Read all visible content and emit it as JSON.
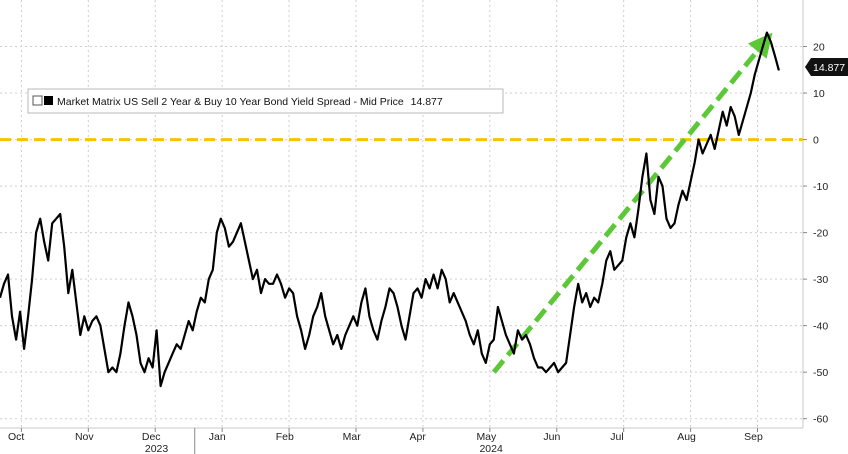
{
  "chart_data": {
    "type": "line",
    "legend": {
      "label": "Market Matrix US Sell 2 Year & Buy 10 Year Bond Yield Spread - Mid Price",
      "last_value": "14.877"
    },
    "last_value_tag": "14.877",
    "y_ticks": [
      20,
      10,
      0,
      -10,
      -20,
      -30,
      -40,
      -50,
      -60
    ],
    "ylim": [
      -62,
      30
    ],
    "x_months": [
      "Oct",
      "Nov",
      "Dec",
      "Jan",
      "Feb",
      "Mar",
      "Apr",
      "May",
      "Jun",
      "Jul",
      "Aug",
      "Sep"
    ],
    "x_years": [
      "2023",
      "2024"
    ],
    "reference_line": {
      "y": 0,
      "color": "#f5c400",
      "style": "dashed"
    },
    "trend_arrow": {
      "from": [
        0.615,
        -50
      ],
      "to": [
        0.962,
        23
      ],
      "color": "#5cc837",
      "style": "dashed"
    },
    "series": [
      {
        "line_color": "#000000",
        "points": [
          [
            0.0,
            -34
          ],
          [
            0.005,
            -31
          ],
          [
            0.01,
            -29
          ],
          [
            0.015,
            -38
          ],
          [
            0.02,
            -43
          ],
          [
            0.025,
            -37
          ],
          [
            0.03,
            -45
          ],
          [
            0.035,
            -38
          ],
          [
            0.04,
            -30
          ],
          [
            0.045,
            -20
          ],
          [
            0.05,
            -17
          ],
          [
            0.055,
            -22
          ],
          [
            0.06,
            -26
          ],
          [
            0.065,
            -18
          ],
          [
            0.07,
            -17
          ],
          [
            0.075,
            -16
          ],
          [
            0.08,
            -23
          ],
          [
            0.085,
            -33
          ],
          [
            0.09,
            -28
          ],
          [
            0.095,
            -35
          ],
          [
            0.1,
            -42
          ],
          [
            0.105,
            -38
          ],
          [
            0.11,
            -41
          ],
          [
            0.115,
            -39
          ],
          [
            0.12,
            -38
          ],
          [
            0.125,
            -40
          ],
          [
            0.13,
            -45
          ],
          [
            0.135,
            -50
          ],
          [
            0.14,
            -49
          ],
          [
            0.145,
            -50
          ],
          [
            0.15,
            -46
          ],
          [
            0.155,
            -40
          ],
          [
            0.16,
            -35
          ],
          [
            0.165,
            -38
          ],
          [
            0.17,
            -42
          ],
          [
            0.175,
            -48
          ],
          [
            0.18,
            -50
          ],
          [
            0.185,
            -47
          ],
          [
            0.19,
            -49
          ],
          [
            0.195,
            -41
          ],
          [
            0.2,
            -53
          ],
          [
            0.205,
            -50
          ],
          [
            0.21,
            -48
          ],
          [
            0.215,
            -46
          ],
          [
            0.22,
            -44
          ],
          [
            0.225,
            -45
          ],
          [
            0.23,
            -42
          ],
          [
            0.235,
            -39
          ],
          [
            0.24,
            -41
          ],
          [
            0.245,
            -37
          ],
          [
            0.25,
            -34
          ],
          [
            0.255,
            -35
          ],
          [
            0.26,
            -30
          ],
          [
            0.265,
            -28
          ],
          [
            0.27,
            -20
          ],
          [
            0.275,
            -17
          ],
          [
            0.28,
            -19
          ],
          [
            0.285,
            -23
          ],
          [
            0.29,
            -22
          ],
          [
            0.295,
            -20
          ],
          [
            0.3,
            -18
          ],
          [
            0.305,
            -22
          ],
          [
            0.31,
            -26
          ],
          [
            0.315,
            -30
          ],
          [
            0.32,
            -28
          ],
          [
            0.325,
            -33
          ],
          [
            0.33,
            -30
          ],
          [
            0.335,
            -31
          ],
          [
            0.34,
            -31
          ],
          [
            0.345,
            -29
          ],
          [
            0.35,
            -31
          ],
          [
            0.355,
            -34
          ],
          [
            0.36,
            -32
          ],
          [
            0.365,
            -33
          ],
          [
            0.37,
            -38
          ],
          [
            0.375,
            -41
          ],
          [
            0.38,
            -45
          ],
          [
            0.385,
            -42
          ],
          [
            0.39,
            -38
          ],
          [
            0.395,
            -36
          ],
          [
            0.4,
            -33
          ],
          [
            0.405,
            -38
          ],
          [
            0.41,
            -41
          ],
          [
            0.415,
            -44
          ],
          [
            0.42,
            -42
          ],
          [
            0.425,
            -45
          ],
          [
            0.43,
            -42
          ],
          [
            0.435,
            -40
          ],
          [
            0.44,
            -38
          ],
          [
            0.445,
            -40
          ],
          [
            0.45,
            -35
          ],
          [
            0.455,
            -32
          ],
          [
            0.46,
            -38
          ],
          [
            0.465,
            -41
          ],
          [
            0.47,
            -43
          ],
          [
            0.475,
            -39
          ],
          [
            0.48,
            -36
          ],
          [
            0.485,
            -32
          ],
          [
            0.49,
            -33
          ],
          [
            0.495,
            -36
          ],
          [
            0.5,
            -40
          ],
          [
            0.505,
            -43
          ],
          [
            0.51,
            -38
          ],
          [
            0.515,
            -33
          ],
          [
            0.52,
            -32
          ],
          [
            0.525,
            -34
          ],
          [
            0.53,
            -30
          ],
          [
            0.535,
            -32
          ],
          [
            0.54,
            -29
          ],
          [
            0.545,
            -32
          ],
          [
            0.55,
            -28
          ],
          [
            0.555,
            -30
          ],
          [
            0.56,
            -35
          ],
          [
            0.565,
            -33
          ],
          [
            0.57,
            -35
          ],
          [
            0.575,
            -37
          ],
          [
            0.58,
            -39
          ],
          [
            0.585,
            -42
          ],
          [
            0.59,
            -44
          ],
          [
            0.595,
            -41
          ],
          [
            0.6,
            -46
          ],
          [
            0.605,
            -48
          ],
          [
            0.61,
            -44
          ],
          [
            0.615,
            -43
          ],
          [
            0.62,
            -36
          ],
          [
            0.625,
            -39
          ],
          [
            0.63,
            -42
          ],
          [
            0.635,
            -44
          ],
          [
            0.64,
            -46
          ],
          [
            0.645,
            -41
          ],
          [
            0.65,
            -43
          ],
          [
            0.655,
            -42
          ],
          [
            0.66,
            -44
          ],
          [
            0.665,
            -47
          ],
          [
            0.67,
            -49
          ],
          [
            0.675,
            -49
          ],
          [
            0.68,
            -50
          ],
          [
            0.685,
            -49
          ],
          [
            0.69,
            -48
          ],
          [
            0.695,
            -50
          ],
          [
            0.7,
            -49
          ],
          [
            0.705,
            -48
          ],
          [
            0.71,
            -42
          ],
          [
            0.715,
            -36
          ],
          [
            0.72,
            -31
          ],
          [
            0.725,
            -35
          ],
          [
            0.73,
            -33
          ],
          [
            0.735,
            -36
          ],
          [
            0.74,
            -34
          ],
          [
            0.745,
            -35
          ],
          [
            0.75,
            -31
          ],
          [
            0.755,
            -26
          ],
          [
            0.76,
            -24
          ],
          [
            0.765,
            -28
          ],
          [
            0.77,
            -27
          ],
          [
            0.775,
            -26
          ],
          [
            0.78,
            -21
          ],
          [
            0.785,
            -18
          ],
          [
            0.79,
            -21
          ],
          [
            0.795,
            -15
          ],
          [
            0.8,
            -8
          ],
          [
            0.805,
            -3
          ],
          [
            0.81,
            -13
          ],
          [
            0.815,
            -16
          ],
          [
            0.82,
            -8
          ],
          [
            0.825,
            -10
          ],
          [
            0.83,
            -17
          ],
          [
            0.835,
            -19
          ],
          [
            0.84,
            -18
          ],
          [
            0.845,
            -14
          ],
          [
            0.85,
            -11
          ],
          [
            0.855,
            -13
          ],
          [
            0.86,
            -9
          ],
          [
            0.865,
            -5
          ],
          [
            0.87,
            0
          ],
          [
            0.875,
            -3
          ],
          [
            0.88,
            -1
          ],
          [
            0.885,
            1
          ],
          [
            0.89,
            -2
          ],
          [
            0.895,
            2
          ],
          [
            0.9,
            6
          ],
          [
            0.905,
            3
          ],
          [
            0.91,
            7
          ],
          [
            0.915,
            5
          ],
          [
            0.92,
            1
          ],
          [
            0.925,
            4
          ],
          [
            0.93,
            7
          ],
          [
            0.935,
            10
          ],
          [
            0.94,
            14
          ],
          [
            0.945,
            17
          ],
          [
            0.95,
            20
          ],
          [
            0.955,
            23
          ],
          [
            0.96,
            21
          ],
          [
            0.965,
            18
          ],
          [
            0.97,
            14.877
          ]
        ]
      }
    ]
  }
}
